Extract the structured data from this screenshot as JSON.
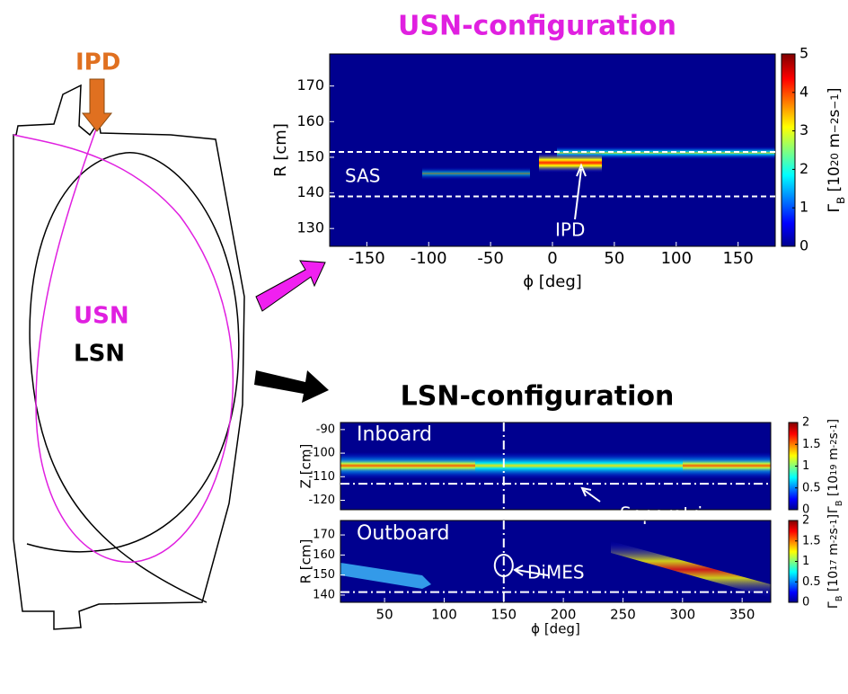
{
  "diagram": {
    "ipd": "IPD",
    "usn": "USN",
    "lsn": "LSN"
  },
  "chart_data": [
    {
      "type": "heatmap",
      "title": "USN-configuration",
      "xlabel": "ϕ [deg]",
      "ylabel": "R [cm]",
      "xlim": [
        -180,
        180
      ],
      "ylim": [
        125,
        179
      ],
      "xticks": [
        -150,
        -100,
        -50,
        0,
        50,
        100,
        150
      ],
      "yticks": [
        130,
        140,
        150,
        160,
        170
      ],
      "hlines": [
        151.5,
        139
      ],
      "annotations": [
        "SAS",
        "IPD"
      ],
      "colorbar": {
        "lim": [
          0,
          5
        ],
        "ticks": [
          0,
          1,
          2,
          3,
          4,
          5
        ],
        "label": [
          "Γ",
          "B",
          " [10",
          "20",
          " m",
          "−2",
          "s",
          "−1",
          "]"
        ]
      }
    },
    {
      "type": "heatmap",
      "title": "LSN-configuration",
      "panel": "Inboard",
      "ylabel": "Z [cm]",
      "xlim": [
        13,
        374
      ],
      "ylim": [
        -124,
        -87
      ],
      "yticks": [
        -90,
        -100,
        -110,
        -120
      ],
      "hlines": [
        -113
      ],
      "vlines": [
        150
      ],
      "annotations": [
        "Separatrix"
      ],
      "colorbar": {
        "lim": [
          0,
          2
        ],
        "ticks": [
          0,
          0.5,
          1,
          1.5,
          2
        ],
        "label": [
          "Γ",
          "B",
          " [10",
          "19",
          " m",
          "-2",
          "s",
          "-1",
          "]"
        ]
      }
    },
    {
      "type": "heatmap",
      "panel": "Outboard",
      "xlabel": "ϕ [deg]",
      "ylabel": "R [cm]",
      "xlim": [
        13,
        374
      ],
      "ylim": [
        136.4,
        177.2
      ],
      "xticks": [
        50,
        100,
        150,
        200,
        250,
        300,
        350
      ],
      "yticks": [
        140,
        150,
        160,
        170
      ],
      "hlines": [
        141.5
      ],
      "vlines": [
        150
      ],
      "annotations": [
        "DiMES"
      ],
      "colorbar": {
        "lim": [
          0,
          2
        ],
        "ticks": [
          0,
          0.5,
          1,
          1.5,
          2
        ],
        "label": [
          "Γ",
          "B",
          " [10",
          "17",
          " m",
          "-2",
          "s",
          "-1",
          "]"
        ]
      }
    }
  ]
}
